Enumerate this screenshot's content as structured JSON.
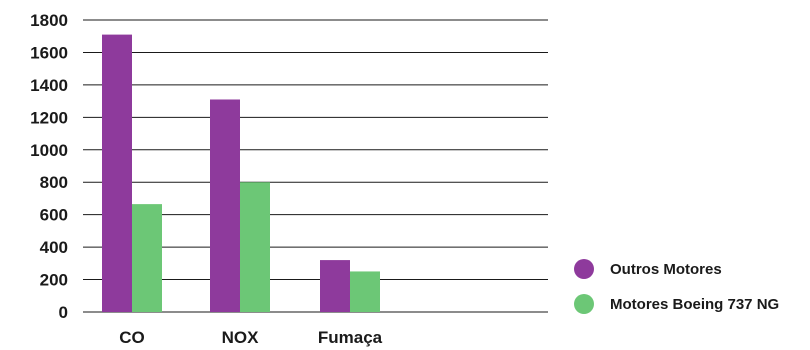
{
  "chart_data": {
    "type": "bar",
    "categories": [
      "CO",
      "NOX",
      "Fumaça"
    ],
    "series": [
      {
        "name": "Outros Motores",
        "values": [
          1710,
          1310,
          320
        ],
        "color": "#8e3a9c"
      },
      {
        "name": "Motores Boeing 737 NG",
        "values": [
          665,
          800,
          250
        ],
        "color": "#6cc776"
      }
    ],
    "yticks": [
      0,
      200,
      400,
      600,
      800,
      1000,
      1200,
      1400,
      1600,
      1800
    ],
    "ylim": [
      0,
      1800
    ],
    "grid": true,
    "legend_position": "bottom-right",
    "title": "",
    "xlabel": "",
    "ylabel": ""
  }
}
